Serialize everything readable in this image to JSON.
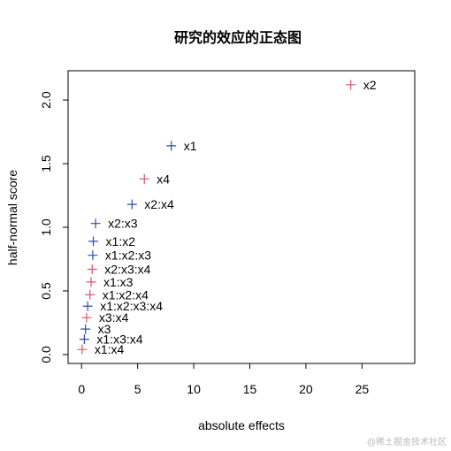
{
  "chart_data": {
    "type": "scatter",
    "title": "研究的效应的正态图",
    "xlabel": "absolute effects",
    "ylabel": "half-normal score",
    "xlim": [
      -1.2,
      29.7
    ],
    "ylim": [
      -0.07,
      2.23
    ],
    "x_ticks": [
      0,
      5,
      10,
      15,
      20,
      25
    ],
    "y_ticks": [
      0.0,
      0.5,
      1.0,
      1.5,
      2.0
    ],
    "x_tick_labels": [
      "0",
      "5",
      "10",
      "15",
      "20",
      "25"
    ],
    "y_tick_labels": [
      "0.0",
      "0.5",
      "1.0",
      "1.5",
      "2.0"
    ],
    "grid": false,
    "colors": {
      "positive": "#df536b",
      "negative": "#2e4ea8"
    },
    "points": [
      {
        "label": "x1:x4",
        "x": 0.05,
        "y": 0.04,
        "color": "#df536b"
      },
      {
        "label": "x1:x3:x4",
        "x": 0.25,
        "y": 0.12,
        "color": "#2e4ea8"
      },
      {
        "label": "x3",
        "x": 0.35,
        "y": 0.2,
        "color": "#2e4ea8"
      },
      {
        "label": "x3:x4",
        "x": 0.45,
        "y": 0.29,
        "color": "#df536b"
      },
      {
        "label": "x1:x2:x3:x4",
        "x": 0.55,
        "y": 0.38,
        "color": "#2e4ea8"
      },
      {
        "label": "x1:x2:x4",
        "x": 0.75,
        "y": 0.47,
        "color": "#df536b"
      },
      {
        "label": "x1:x3",
        "x": 0.85,
        "y": 0.57,
        "color": "#df536b"
      },
      {
        "label": "x2:x3:x4",
        "x": 0.95,
        "y": 0.67,
        "color": "#df536b"
      },
      {
        "label": "x1:x2:x3",
        "x": 1.0,
        "y": 0.78,
        "color": "#2e4ea8"
      },
      {
        "label": "x1:x2",
        "x": 1.05,
        "y": 0.89,
        "color": "#2e4ea8"
      },
      {
        "label": "x2:x3",
        "x": 1.25,
        "y": 1.03,
        "color": "#2e4ea8"
      },
      {
        "label": "x2:x4",
        "x": 4.5,
        "y": 1.18,
        "color": "#2e4ea8"
      },
      {
        "label": "x4",
        "x": 5.6,
        "y": 1.38,
        "color": "#df536b"
      },
      {
        "label": "x1",
        "x": 8.0,
        "y": 1.64,
        "color": "#2e4ea8"
      },
      {
        "label": "x2",
        "x": 24.0,
        "y": 2.12,
        "color": "#df536b"
      }
    ]
  },
  "watermark": "@稀土掘金技术社区"
}
